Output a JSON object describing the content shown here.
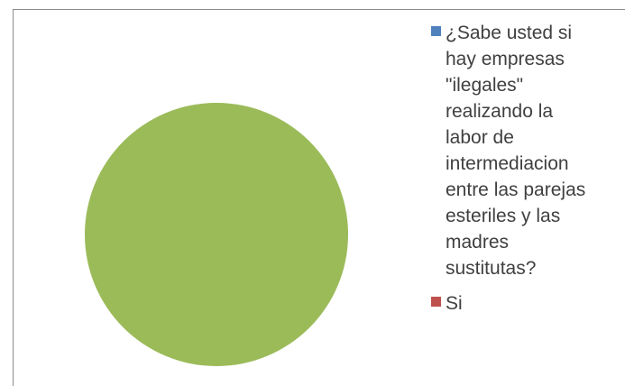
{
  "chart_data": {
    "type": "pie",
    "series": [
      {
        "name": "¿Sabe usted si hay empresas \"ilegales\" realizando la labor de intermediacion entre las parejas esteriles y las madres sustitutas?",
        "color": "#4f81bd",
        "value": 0
      },
      {
        "name": "Si",
        "color": "#c0504d",
        "value": 0
      },
      {
        "name": "",
        "color": "#9bbb59",
        "value": 1
      }
    ],
    "legend_position": "right"
  },
  "legend": {
    "item1_text": "¿Sabe usted si\nhay empresas\n\"ilegales\"\nrealizando la\nlabor de\nintermediacion\nentre las parejas\nesteriles y las\nmadres\nsustitutas?",
    "item2_text": "Si"
  }
}
